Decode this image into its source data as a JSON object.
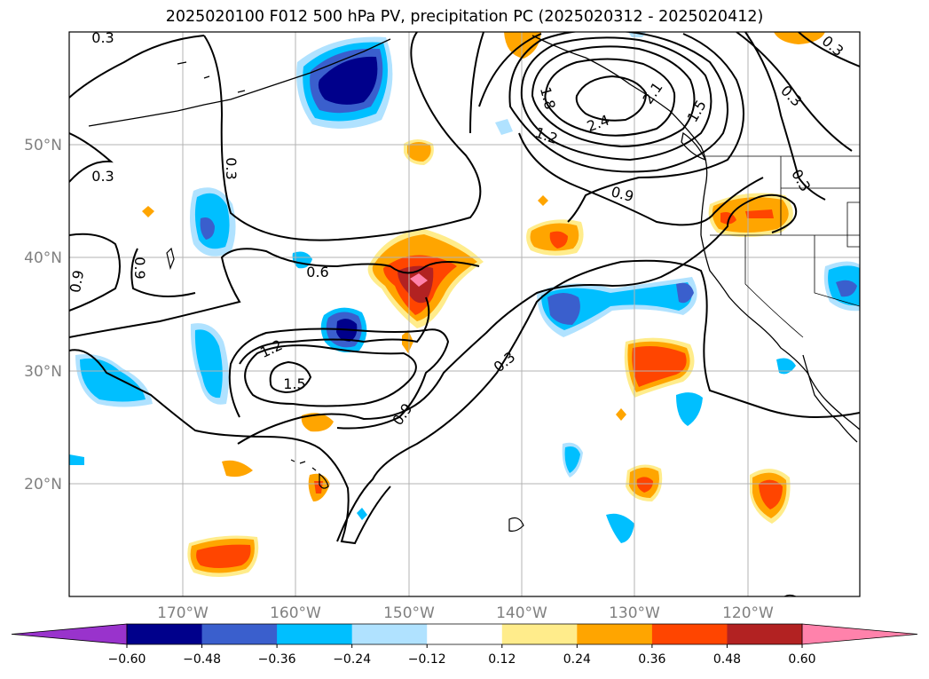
{
  "title": "2025020100 F012 500 hPa PV, precipitation PC (2025020312 - 2025020412)",
  "chart_data": {
    "type": "filled-contour-map",
    "map_extent": {
      "lon": [
        -180,
        -110
      ],
      "lat": [
        10,
        60
      ]
    },
    "lat_ticks": [
      {
        "value": 20,
        "label": "20°N"
      },
      {
        "value": 30,
        "label": "30°N"
      },
      {
        "value": 40,
        "label": "40°N"
      },
      {
        "value": 50,
        "label": "50°N"
      }
    ],
    "lon_ticks": [
      {
        "value": -170,
        "label": "170°W"
      },
      {
        "value": -160,
        "label": "160°W"
      },
      {
        "value": -150,
        "label": "150°W"
      },
      {
        "value": -140,
        "label": "140°W"
      },
      {
        "value": -130,
        "label": "130°W"
      },
      {
        "value": -120,
        "label": "120°W"
      }
    ],
    "grid": true,
    "colorbar": {
      "orientation": "horizontal",
      "extend": "both",
      "boundaries": [
        -0.72,
        -0.6,
        -0.48,
        -0.36,
        -0.24,
        -0.12,
        0.12,
        0.24,
        0.36,
        0.48,
        0.6,
        0.72
      ],
      "colors": [
        "#9933cc",
        "#00008b",
        "#3a5fcd",
        "#00bfff",
        "#b0e2ff",
        "#ffffff",
        "#ffec8b",
        "#ffa500",
        "#ff4500",
        "#b22222",
        "#ff82ab"
      ],
      "tick_labels": [
        "−0.60",
        "−0.48",
        "−0.36",
        "−0.24",
        "−0.12",
        "0.12",
        "0.24",
        "0.36",
        "0.48",
        "0.60"
      ]
    },
    "pv_contour_labels": [
      "0.3",
      "0.3",
      "0.3",
      "0.3",
      "0.3",
      "0.6",
      "0.9",
      "0.9",
      "0.9",
      "0.9",
      "1.2",
      "1.5",
      "1.2",
      "1.8",
      "2.1",
      "2.4",
      "1.5",
      "0.3",
      "0.3"
    ],
    "precip_pc_blobs": [
      {
        "name": "gulf-alaska-neg",
        "lon": -154,
        "lat": 55.5,
        "peak": -0.6
      },
      {
        "name": "aleutian-neg",
        "lon": -172,
        "lat": 42,
        "peak": -0.36
      },
      {
        "name": "west-neg-30n",
        "lon": -176,
        "lat": 29,
        "peak": -0.24
      },
      {
        "name": "hawaii-north-neg",
        "lon": -169,
        "lat": 32,
        "peak": -0.24
      },
      {
        "name": "central-neg-33n",
        "lon": -154.5,
        "lat": 33.5,
        "peak": -0.48
      },
      {
        "name": "central-pos-39n",
        "lon": -150,
        "lat": 38,
        "peak": 0.6
      },
      {
        "name": "gulf-alaska-pos",
        "lon": -148.5,
        "lat": 49.5,
        "peak": 0.24
      },
      {
        "name": "northeast-pos-43n",
        "lon": -136,
        "lat": 42,
        "peak": 0.36
      },
      {
        "name": "east-neg-36n",
        "lon": -131,
        "lat": 36,
        "peak": -0.48
      },
      {
        "name": "east-pos-30n",
        "lon": -128.5,
        "lat": 30,
        "peak": 0.36
      },
      {
        "name": "coast-pos-44n",
        "lon": -119,
        "lat": 44,
        "peak": 0.36
      },
      {
        "name": "nevada-neg",
        "lon": -112,
        "lat": 37,
        "peak": -0.36
      },
      {
        "name": "southwest-pos-14n",
        "lon": -166,
        "lat": 14,
        "peak": 0.36
      },
      {
        "name": "south-pos-20n",
        "lon": -128.5,
        "lat": 20.5,
        "peak": 0.36
      },
      {
        "name": "southeast-pos-19n",
        "lon": -119,
        "lat": 19,
        "peak": 0.36
      },
      {
        "name": "south-neg-22n",
        "lon": -140,
        "lat": 22,
        "peak": -0.24
      },
      {
        "name": "south-neg-16n",
        "lon": -131,
        "lat": 16,
        "peak": -0.24
      }
    ]
  }
}
